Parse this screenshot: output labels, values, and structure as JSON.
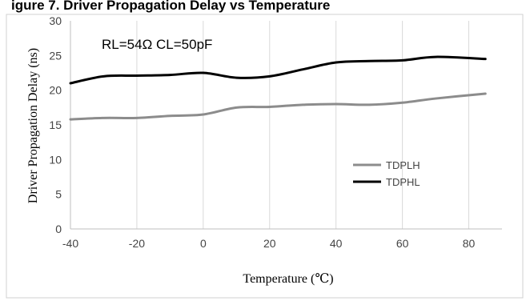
{
  "caption_fragment": "igure 7. Driver Propagation Delay vs Temperature",
  "chart_data": {
    "type": "line",
    "title": "",
    "annotation": "RL=54Ω CL=50pF",
    "xlabel": "Temperature (℃)",
    "ylabel": "Driver Propagation Delay (ns)",
    "xlim": [
      -40,
      90
    ],
    "ylim": [
      0,
      30
    ],
    "xticks": [
      -40,
      -20,
      0,
      20,
      40,
      60,
      80
    ],
    "yticks": [
      0,
      5,
      10,
      15,
      20,
      25,
      30
    ],
    "grid": "vertical",
    "legend_position": "right-center",
    "series": [
      {
        "name": "TDPLH",
        "color": "#8c8c8c",
        "x": [
          -40,
          -30,
          -20,
          -10,
          0,
          10,
          20,
          30,
          40,
          50,
          60,
          70,
          85
        ],
        "y": [
          15.8,
          16.0,
          16.0,
          16.3,
          16.5,
          17.5,
          17.6,
          17.9,
          18.0,
          17.9,
          18.2,
          18.8,
          19.5
        ]
      },
      {
        "name": "TDPHL",
        "color": "#000000",
        "x": [
          -40,
          -30,
          -20,
          -10,
          0,
          10,
          20,
          30,
          40,
          50,
          60,
          70,
          85
        ],
        "y": [
          21.0,
          22.0,
          22.1,
          22.2,
          22.5,
          21.8,
          22.0,
          23.0,
          24.0,
          24.2,
          24.3,
          24.8,
          24.5
        ]
      }
    ]
  }
}
